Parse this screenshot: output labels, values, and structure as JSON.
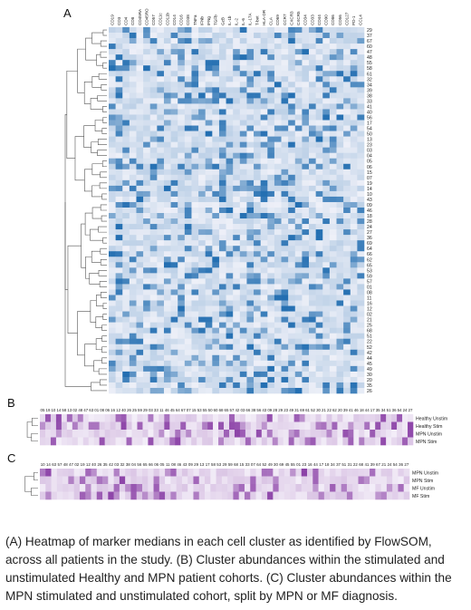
{
  "panels": {
    "a": {
      "letter": "A"
    },
    "b": {
      "letter": "B"
    },
    "c": {
      "letter": "C"
    }
  },
  "colors": {
    "blue_low": "#eef0f8",
    "blue_high": "#1f6cb0",
    "purple_low": "#f3eef8",
    "purple_high": "#8a3fa6"
  },
  "chart_data": [
    {
      "type": "heatmap",
      "panel": "A",
      "x": [
        "CD19",
        "CD3",
        "CD4",
        "CD8",
        "CD45RA",
        "CD45RO",
        "CD57",
        "CD11c",
        "CD11b",
        "CD14",
        "CD16",
        "CD38",
        "TNFa",
        "IFNb",
        "IFNg",
        "TGFb",
        "GzB",
        "IL-1b",
        "IL-2",
        "IL-6",
        "IL-17A",
        "T-bet",
        "HLA-DR",
        "CLA",
        "CD69",
        "CCR7",
        "CXCR3",
        "CXCR5",
        "CD34",
        "CD33",
        "CD44",
        "CD90",
        "CD86",
        "CD56",
        "CD127",
        "PD-1",
        "CCL4"
      ],
      "y": [
        "29",
        "37",
        "67",
        "60",
        "47",
        "48",
        "55",
        "58",
        "61",
        "32",
        "34",
        "39",
        "38",
        "33",
        "41",
        "40",
        "56",
        "17",
        "54",
        "50",
        "13",
        "23",
        "03",
        "04",
        "05",
        "06",
        "15",
        "07",
        "19",
        "14",
        "10",
        "43",
        "09",
        "46",
        "18",
        "28",
        "24",
        "27",
        "36",
        "69",
        "64",
        "66",
        "62",
        "65",
        "53",
        "59",
        "57",
        "01",
        "08",
        "11",
        "16",
        "12",
        "02",
        "21",
        "25",
        "68",
        "51",
        "22",
        "52",
        "42",
        "44",
        "45",
        "49",
        "30",
        "20",
        "35",
        "26"
      ]
    },
    {
      "type": "heatmap",
      "panel": "B",
      "x": [
        "05",
        "19",
        "10",
        "14",
        "58",
        "13",
        "02",
        "48",
        "47",
        "63",
        "01",
        "08",
        "06",
        "16",
        "12",
        "40",
        "26",
        "25",
        "59",
        "29",
        "03",
        "33",
        "11",
        "46",
        "45",
        "64",
        "67",
        "07",
        "15",
        "53",
        "55",
        "50",
        "60",
        "68",
        "65",
        "57",
        "42",
        "03",
        "66",
        "38",
        "56",
        "43",
        "09",
        "28",
        "29",
        "23",
        "49",
        "31",
        "69",
        "61",
        "52",
        "30",
        "21",
        "22",
        "62",
        "20",
        "39",
        "41",
        "46",
        "18",
        "44",
        "17",
        "35",
        "34",
        "51",
        "36",
        "54",
        "24",
        "27"
      ],
      "y": [
        "Healthy Unstim",
        "Healthy Stim",
        "MPN Unstim",
        "MPN Stim"
      ]
    },
    {
      "type": "heatmap",
      "panel": "C",
      "x": [
        "10",
        "14",
        "63",
        "57",
        "48",
        "47",
        "02",
        "19",
        "12",
        "40",
        "26",
        "35",
        "42",
        "03",
        "32",
        "38",
        "04",
        "56",
        "65",
        "66",
        "06",
        "05",
        "11",
        "08",
        "46",
        "43",
        "09",
        "29",
        "13",
        "17",
        "58",
        "53",
        "29",
        "59",
        "68",
        "15",
        "33",
        "07",
        "64",
        "52",
        "49",
        "30",
        "69",
        "45",
        "55",
        "01",
        "23",
        "16",
        "44",
        "17",
        "18",
        "34",
        "37",
        "51",
        "31",
        "22",
        "68",
        "41",
        "39",
        "67",
        "21",
        "24",
        "54",
        "36",
        "27"
      ],
      "y": [
        "MPN Unstim",
        "MPN Stim",
        "MF Unstim",
        "MF Stim"
      ]
    }
  ],
  "caption": "(A) Heatmap of marker medians in each cell cluster as identified by FlowSOM, across all patients in the study. (B) Cluster abundances within the stimulated and unstimulated Healthy and MPN patient cohorts. (C) Cluster abundances within the MPN stimulated and unstimulated cohort, split by MPN or MF diagnosis."
}
